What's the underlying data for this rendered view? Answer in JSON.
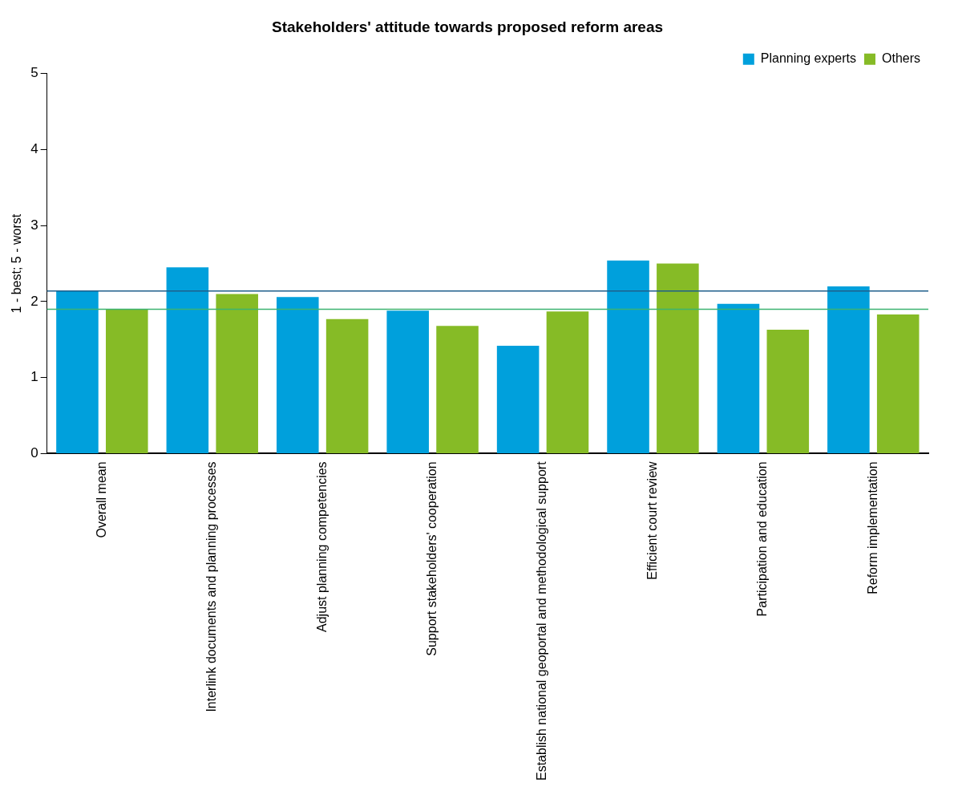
{
  "chart_data": {
    "type": "bar",
    "title": "Stakeholders' attitude towards proposed reform areas",
    "ylabel": "1 - best; 5 - worst",
    "categories": [
      "Overall mean",
      "Interlink documents and planning processes",
      "Adjust planning competencies",
      "Support stakeholders' cooperation",
      "Establish national geoportal and methodological support",
      "Efficient court review",
      "Participation and education",
      "Reform implementation"
    ],
    "series": [
      {
        "name": "Planning experts",
        "color": "#00a0dc",
        "values": [
          2.14,
          2.45,
          2.06,
          1.88,
          1.42,
          2.54,
          1.97,
          2.2
        ]
      },
      {
        "name": "Others",
        "color": "#86bb26",
        "values": [
          1.9,
          2.1,
          1.77,
          1.68,
          1.87,
          2.5,
          1.63,
          1.83
        ]
      }
    ],
    "ylim": [
      0,
      5
    ],
    "yticks": [
      0,
      1,
      2,
      3,
      4,
      5
    ],
    "grid": false,
    "legend": "top right",
    "ref_lines": [
      {
        "axis": "y",
        "value": 2.14,
        "color": "#1f5f8b"
      },
      {
        "axis": "y",
        "value": 1.9,
        "color": "#3cb371"
      }
    ]
  }
}
